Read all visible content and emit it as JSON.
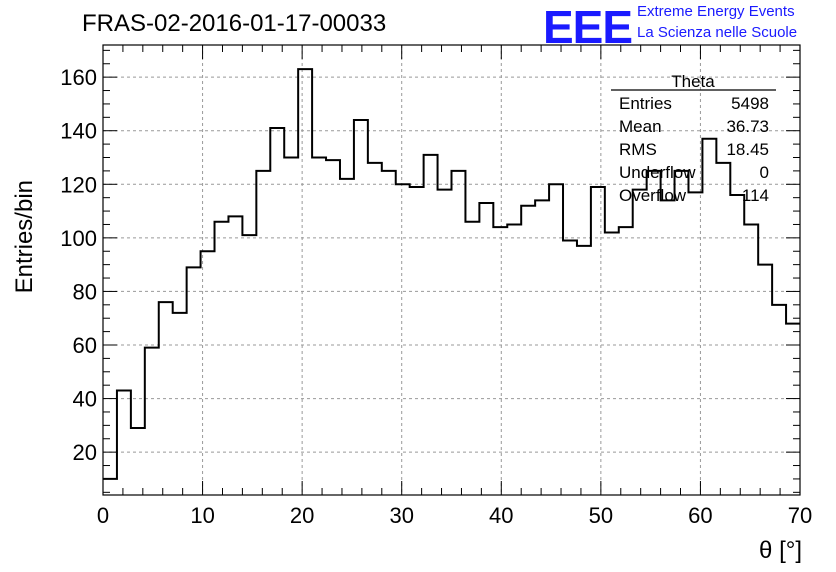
{
  "header": {
    "run_title": "FRAS-02-2016-01-17-00033",
    "logo_text": "EEE",
    "logo_line1": "Extreme Energy Events",
    "logo_line2": "La Scienza nelle Scuole"
  },
  "stats_box": {
    "title": "Theta",
    "rows": [
      {
        "label": "Entries",
        "value": "5498"
      },
      {
        "label": "Mean",
        "value": "36.73"
      },
      {
        "label": "RMS",
        "value": "18.45"
      },
      {
        "label": "Underflow",
        "value": "0"
      },
      {
        "label": "Overflow",
        "value": "114"
      }
    ]
  },
  "colors": {
    "logo": "#1a1aff",
    "line": "#000000",
    "grid": "#999999"
  },
  "chart_data": {
    "type": "histogram",
    "xlabel": "θ [°]",
    "ylabel": "Entries/bin",
    "xlim": [
      0,
      70
    ],
    "ylim": [
      4,
      172
    ],
    "grid": true,
    "x_ticks": [
      0,
      10,
      20,
      30,
      40,
      50,
      60,
      70
    ],
    "y_ticks": [
      20,
      40,
      60,
      80,
      100,
      120,
      140,
      160
    ],
    "bin_edges": [
      0,
      1.4,
      2.8,
      4.2,
      5.6,
      7.0,
      8.4,
      9.8,
      11.2,
      12.6,
      14.0,
      15.4,
      16.8,
      18.2,
      19.6,
      21.0,
      22.4,
      23.8,
      25.2,
      26.6,
      28.0,
      29.4,
      30.8,
      32.2,
      33.6,
      35.0,
      36.4,
      37.8,
      39.2,
      40.6,
      42.0,
      43.4,
      44.8,
      46.2,
      47.6,
      49.0,
      50.4,
      51.8,
      53.2,
      54.6,
      56.0,
      57.4,
      58.8,
      60.2,
      61.6,
      63.0,
      64.4,
      65.8,
      67.2,
      68.6,
      70.0
    ],
    "values": [
      10,
      43,
      29,
      59,
      76,
      72,
      89,
      95,
      106,
      108,
      101,
      125,
      141,
      130,
      163,
      130,
      129,
      122,
      144,
      128,
      125,
      120,
      119,
      131,
      118,
      125,
      106,
      113,
      104,
      105,
      112,
      114,
      120,
      99,
      97,
      119,
      102,
      104,
      118,
      125,
      114,
      125,
      117,
      137,
      128,
      116,
      105,
      90,
      75,
      68
    ]
  }
}
